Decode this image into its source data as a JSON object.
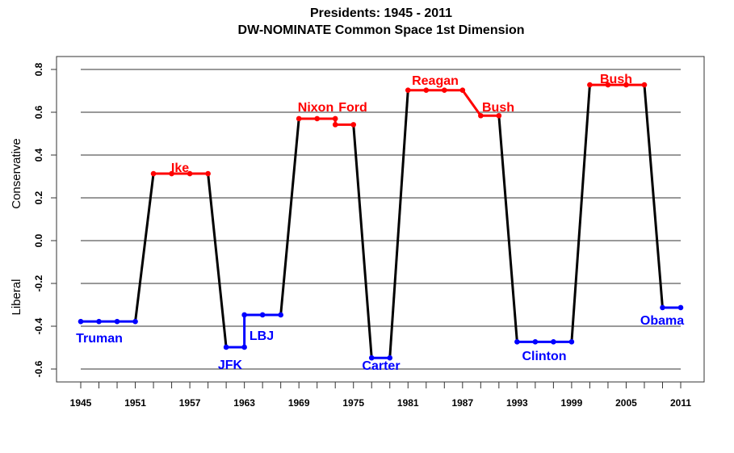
{
  "chart_data": {
    "type": "line",
    "title": "Presidents: 1945 - 2011",
    "subtitle": "DW-NOMINATE Common Space 1st Dimension",
    "xlabel": "",
    "ylabel_top": "Conservative",
    "ylabel_bottom": "Liberal",
    "xlim": [
      1945,
      2011
    ],
    "ylim": [
      -0.6,
      0.8
    ],
    "xticks": [
      1945,
      1951,
      1957,
      1963,
      1969,
      1975,
      1981,
      1987,
      1993,
      1999,
      2005,
      2011
    ],
    "xtick_labels": [
      "1945",
      "1951",
      "1957",
      "1963",
      "1969",
      "1975",
      "1981",
      "1987",
      "1993",
      "1999",
      "2005",
      "2011"
    ],
    "yticks": [
      0.8,
      0.6,
      0.4,
      0.2,
      0.0,
      -0.2,
      -0.4,
      -0.6
    ],
    "ytick_labels": [
      "0.8",
      "0.6",
      "0.4",
      "0.2",
      "0.0",
      "-0.2",
      "-0.4",
      "-0.6"
    ],
    "grid": "horizontal",
    "colors": {
      "democrat": "#0000ff",
      "republican": "#ff0000",
      "transition": "#000000"
    },
    "presidents": [
      {
        "name": "Truman",
        "party": "democrat",
        "x": [
          1945,
          1947,
          1949,
          1951
        ],
        "value": -0.378
      },
      {
        "name": "Ike",
        "party": "republican",
        "x": [
          1953,
          1955,
          1957,
          1959
        ],
        "value": 0.313
      },
      {
        "name": "JFK",
        "party": "democrat",
        "x": [
          1961,
          1963
        ],
        "value": -0.498
      },
      {
        "name": "LBJ",
        "party": "democrat",
        "x": [
          1963,
          1965,
          1967
        ],
        "value": -0.347
      },
      {
        "name": "Nixon",
        "party": "republican",
        "x": [
          1969,
          1971,
          1973
        ],
        "value": 0.57
      },
      {
        "name": "Ford",
        "party": "republican",
        "x": [
          1973,
          1975
        ],
        "value": 0.542
      },
      {
        "name": "Carter",
        "party": "democrat",
        "x": [
          1977,
          1979
        ],
        "value": -0.548
      },
      {
        "name": "Reagan",
        "party": "republican",
        "x": [
          1981,
          1983,
          1985,
          1987
        ],
        "value": 0.703
      },
      {
        "name": "Bush",
        "party": "republican",
        "x": [
          1989,
          1991
        ],
        "value": 0.584
      },
      {
        "name": "Clinton",
        "party": "democrat",
        "x": [
          1993,
          1995,
          1997,
          1999
        ],
        "value": -0.473
      },
      {
        "name": "Bush",
        "party": "republican",
        "x": [
          2001,
          2003,
          2005,
          2007
        ],
        "value": 0.728
      },
      {
        "name": "Obama",
        "party": "democrat",
        "x": [
          2009,
          2011
        ],
        "value": -0.313
      }
    ]
  }
}
